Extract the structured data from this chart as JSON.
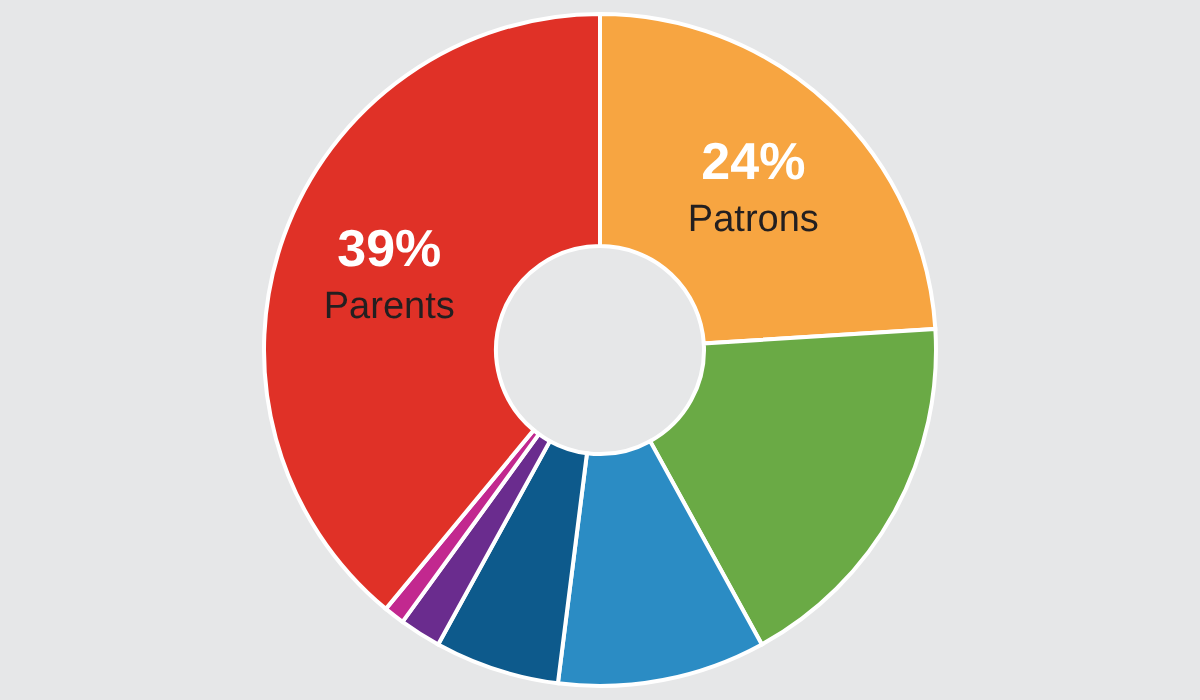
{
  "chart_data": {
    "type": "donut",
    "categories": [
      "Patrons",
      null,
      null,
      null,
      null,
      null,
      "Parents"
    ],
    "values": [
      24,
      18,
      10,
      6,
      2,
      1,
      39
    ],
    "value_labels": [
      "24%",
      null,
      null,
      null,
      null,
      null,
      "39%"
    ],
    "colors": [
      "#f7a541",
      "#6aaa45",
      "#2b8cc4",
      "#0d5a8c",
      "#6a2c8e",
      "#c2288f",
      "#e03127"
    ],
    "legend": false
  }
}
